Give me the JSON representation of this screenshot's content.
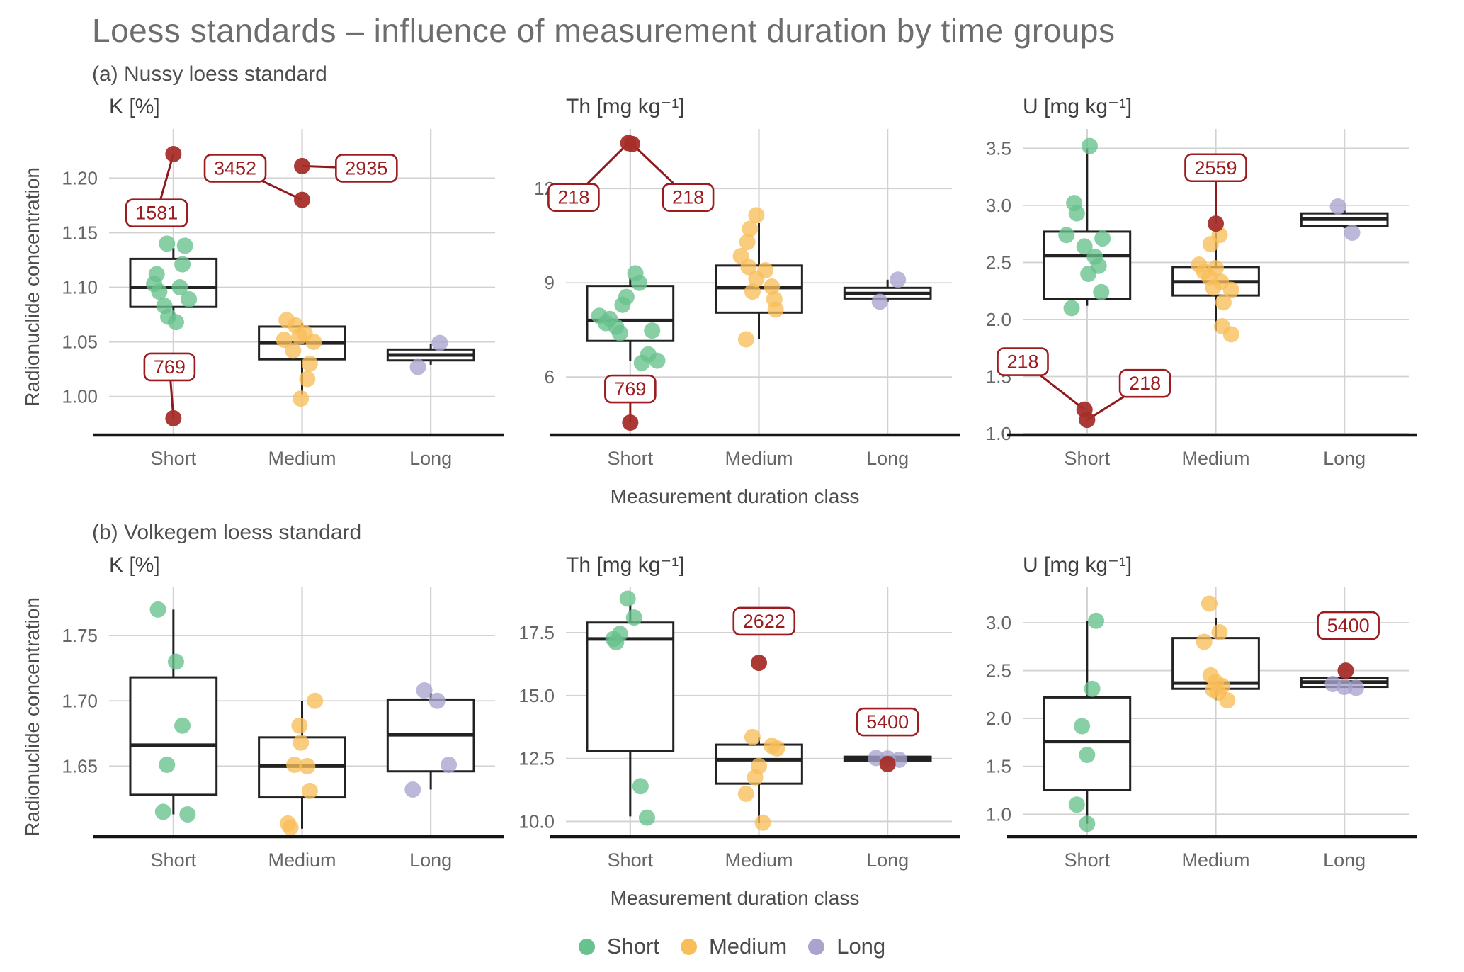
{
  "title": "Loess standards – influence of measurement duration by time groups",
  "ylab": "Radionuclide concentration",
  "xlab": "Measurement duration class",
  "categories": [
    "Short",
    "Medium",
    "Long"
  ],
  "colors": {
    "green": "#68c28d",
    "orange": "#f8be59",
    "purple": "#a8a4ce",
    "red": "#a62e2a",
    "red_label": "#9c1b1e",
    "red_line": "#8f191c",
    "box_stroke": "#222222",
    "grid": "#d2d2d2",
    "axis": "#151515"
  },
  "sections": [
    {
      "key": "a",
      "label": "(a) Nussy loess standard"
    },
    {
      "key": "b",
      "label": "(b) Volkegem loess standard"
    }
  ],
  "legend": [
    {
      "label": "Short",
      "color": "green"
    },
    {
      "label": "Medium",
      "color": "orange"
    },
    {
      "label": "Long",
      "color": "purple"
    }
  ],
  "chart_data": [
    {
      "type": "boxplot-jitter",
      "name": "nussy-k",
      "section": "a",
      "title": "K [%]",
      "ylim": [
        0.966,
        1.245
      ],
      "yticks": [
        1.0,
        1.05,
        1.1,
        1.15,
        1.2
      ],
      "ytick_labels": [
        "1.00",
        "1.05",
        "1.10",
        "1.15",
        "1.20"
      ],
      "groups": [
        {
          "cat": "Short",
          "color": "green",
          "box": {
            "q1": 1.082,
            "med": 1.1,
            "q3": 1.126,
            "wl": 1.07,
            "wh": 1.136
          },
          "points": [
            [
              -0.05,
              1.14
            ],
            [
              0.09,
              1.138
            ],
            [
              0.07,
              1.121
            ],
            [
              -0.13,
              1.112
            ],
            [
              -0.15,
              1.103
            ],
            [
              0.05,
              1.1
            ],
            [
              -0.11,
              1.096
            ],
            [
              0.12,
              1.089
            ],
            [
              -0.07,
              1.083
            ],
            [
              -0.04,
              1.073
            ],
            [
              0.02,
              1.068
            ]
          ],
          "outliers": [
            {
              "dx": 0,
              "y": 1.222,
              "label": "1581",
              "lx": -0.13,
              "ly": 1.168,
              "line": true
            },
            {
              "dx": 0,
              "y": 0.98,
              "label": "769",
              "lx": -0.03,
              "ly": 1.027,
              "line": true
            }
          ]
        },
        {
          "cat": "Medium",
          "color": "orange",
          "box": {
            "q1": 1.034,
            "med": 1.049,
            "q3": 1.064,
            "wl": 1.002,
            "wh": 1.067
          },
          "points": [
            [
              -0.12,
              1.07
            ],
            [
              -0.05,
              1.065
            ],
            [
              0.02,
              1.058
            ],
            [
              -0.02,
              1.055
            ],
            [
              -0.14,
              1.052
            ],
            [
              0.09,
              1.05
            ],
            [
              -0.07,
              1.042
            ],
            [
              0.06,
              1.03
            ],
            [
              0.04,
              1.016
            ],
            [
              -0.01,
              0.998
            ]
          ],
          "outliers": [
            {
              "dx": 0,
              "y": 1.211,
              "label": "2935",
              "lx": 0.5,
              "ly": 1.209,
              "line": true
            },
            {
              "dx": 0,
              "y": 1.18,
              "label": "3452",
              "lx": -0.52,
              "ly": 1.209,
              "line": true
            }
          ]
        },
        {
          "cat": "Long",
          "color": "purple",
          "box": {
            "q1": 1.033,
            "med": 1.038,
            "q3": 1.043,
            "wl": 1.029,
            "wh": 1.048
          },
          "points": [
            [
              0.07,
              1.049
            ],
            [
              -0.1,
              1.027
            ]
          ],
          "outliers": []
        }
      ]
    },
    {
      "type": "boxplot-jitter",
      "name": "nussy-th",
      "section": "a",
      "title": "Th [mg kg⁻¹]",
      "ylim": [
        4.2,
        13.9
      ],
      "yticks": [
        6,
        9,
        12
      ],
      "ytick_labels": [
        "6",
        "9",
        "12"
      ],
      "groups": [
        {
          "cat": "Short",
          "color": "green",
          "box": {
            "q1": 7.15,
            "med": 7.8,
            "q3": 8.9,
            "wl": 6.5,
            "wh": 9.15
          },
          "points": [
            [
              0.04,
              9.3
            ],
            [
              0.07,
              9.0
            ],
            [
              -0.03,
              8.55
            ],
            [
              -0.06,
              8.3
            ],
            [
              -0.24,
              7.95
            ],
            [
              -0.16,
              7.85
            ],
            [
              -0.19,
              7.72
            ],
            [
              -0.11,
              7.6
            ],
            [
              0.17,
              7.48
            ],
            [
              -0.08,
              7.4
            ],
            [
              0.14,
              6.72
            ],
            [
              0.21,
              6.52
            ],
            [
              0.09,
              6.45
            ]
          ],
          "outliers": [
            {
              "dx": -0.015,
              "y": 13.45,
              "label": "218",
              "lx": -0.44,
              "ly": 11.72,
              "line": true
            },
            {
              "dx": 0.015,
              "y": 13.42,
              "label": "218",
              "lx": 0.45,
              "ly": 11.72,
              "line": true
            },
            {
              "dx": 0,
              "y": 4.55,
              "label": "769",
              "lx": 0.0,
              "ly": 5.62,
              "line": true
            }
          ]
        },
        {
          "cat": "Medium",
          "color": "orange",
          "box": {
            "q1": 8.05,
            "med": 8.85,
            "q3": 9.55,
            "wl": 7.2,
            "wh": 10.9
          },
          "points": [
            [
              -0.02,
              11.15
            ],
            [
              -0.07,
              10.72
            ],
            [
              -0.09,
              10.3
            ],
            [
              -0.14,
              9.85
            ],
            [
              -0.08,
              9.5
            ],
            [
              0.05,
              9.4
            ],
            [
              -0.02,
              9.12
            ],
            [
              0.1,
              8.88
            ],
            [
              -0.05,
              8.72
            ],
            [
              0.12,
              8.48
            ],
            [
              0.13,
              8.15
            ],
            [
              -0.1,
              7.2
            ]
          ],
          "outliers": []
        },
        {
          "cat": "Long",
          "color": "purple",
          "box": {
            "q1": 8.5,
            "med": 8.66,
            "q3": 8.84,
            "wl": 8.4,
            "wh": 9.1
          },
          "points": [
            [
              0.08,
              9.1
            ],
            [
              -0.06,
              8.4
            ]
          ],
          "outliers": []
        }
      ]
    },
    {
      "type": "boxplot-jitter",
      "name": "nussy-u",
      "section": "a",
      "title": "U [mg kg⁻¹]",
      "ylim": [
        1.0,
        3.67
      ],
      "yticks": [
        1.0,
        1.5,
        2.0,
        2.5,
        3.0,
        3.5
      ],
      "ytick_labels": [
        "1.0",
        "1.5",
        "2.0",
        "2.5",
        "3.0",
        "3.5"
      ],
      "groups": [
        {
          "cat": "Short",
          "color": "green",
          "box": {
            "q1": 2.18,
            "med": 2.56,
            "q3": 2.77,
            "wl": 2.12,
            "wh": 3.5
          },
          "points": [
            [
              0.02,
              3.52
            ],
            [
              -0.1,
              3.02
            ],
            [
              -0.08,
              2.93
            ],
            [
              -0.16,
              2.74
            ],
            [
              0.12,
              2.71
            ],
            [
              -0.02,
              2.64
            ],
            [
              0.06,
              2.55
            ],
            [
              0.09,
              2.47
            ],
            [
              0.01,
              2.4
            ],
            [
              0.11,
              2.24
            ],
            [
              -0.12,
              2.1
            ]
          ],
          "outliers": [
            {
              "dx": -0.02,
              "y": 1.21,
              "label": "218",
              "lx": -0.5,
              "ly": 1.63,
              "line": true
            },
            {
              "dx": 0.0,
              "y": 1.12,
              "label": "218",
              "lx": 0.45,
              "ly": 1.44,
              "line": true
            }
          ]
        },
        {
          "cat": "Medium",
          "color": "orange",
          "box": {
            "q1": 2.21,
            "med": 2.33,
            "q3": 2.46,
            "wl": 1.9,
            "wh": 2.76
          },
          "points": [
            [
              0.03,
              2.74
            ],
            [
              -0.04,
              2.66
            ],
            [
              -0.13,
              2.48
            ],
            [
              0.0,
              2.45
            ],
            [
              -0.09,
              2.42
            ],
            [
              -0.05,
              2.37
            ],
            [
              0.04,
              2.33
            ],
            [
              -0.02,
              2.28
            ],
            [
              0.12,
              2.26
            ],
            [
              0.06,
              2.15
            ],
            [
              0.05,
              1.94
            ],
            [
              0.12,
              1.87
            ]
          ],
          "outliers": [
            {
              "dx": 0,
              "y": 2.84,
              "label": "2559",
              "lx": 0.0,
              "ly": 3.33,
              "line": true
            }
          ]
        },
        {
          "cat": "Long",
          "color": "purple",
          "box": {
            "q1": 2.82,
            "med": 2.88,
            "q3": 2.93,
            "wl": 2.8,
            "wh": 2.96
          },
          "points": [
            [
              -0.05,
              2.99
            ],
            [
              0.06,
              2.76
            ]
          ],
          "outliers": []
        }
      ]
    },
    {
      "type": "boxplot-jitter",
      "name": "volkegem-k",
      "section": "b",
      "title": "K [%]",
      "ylim": [
        1.597,
        1.787
      ],
      "yticks": [
        1.65,
        1.7,
        1.75
      ],
      "ytick_labels": [
        "1.65",
        "1.70",
        "1.75"
      ],
      "groups": [
        {
          "cat": "Short",
          "color": "green",
          "box": {
            "q1": 1.628,
            "med": 1.666,
            "q3": 1.718,
            "wl": 1.613,
            "wh": 1.77
          },
          "points": [
            [
              -0.12,
              1.77
            ],
            [
              0.02,
              1.73
            ],
            [
              0.07,
              1.681
            ],
            [
              -0.05,
              1.651
            ],
            [
              -0.08,
              1.615
            ],
            [
              0.11,
              1.613
            ]
          ],
          "outliers": []
        },
        {
          "cat": "Medium",
          "color": "orange",
          "box": {
            "q1": 1.626,
            "med": 1.65,
            "q3": 1.672,
            "wl": 1.602,
            "wh": 1.7
          },
          "points": [
            [
              0.1,
              1.7
            ],
            [
              -0.02,
              1.681
            ],
            [
              -0.01,
              1.668
            ],
            [
              -0.06,
              1.651
            ],
            [
              0.04,
              1.65
            ],
            [
              0.06,
              1.631
            ],
            [
              -0.11,
              1.606
            ],
            [
              -0.09,
              1.603
            ]
          ],
          "outliers": []
        },
        {
          "cat": "Long",
          "color": "purple",
          "box": {
            "q1": 1.646,
            "med": 1.674,
            "q3": 1.701,
            "wl": 1.632,
            "wh": 1.706
          },
          "points": [
            [
              -0.05,
              1.708
            ],
            [
              0.05,
              1.7
            ],
            [
              0.14,
              1.651
            ],
            [
              -0.14,
              1.632
            ]
          ],
          "outliers": []
        }
      ]
    },
    {
      "type": "boxplot-jitter",
      "name": "volkegem-th",
      "section": "b",
      "title": "Th [mg kg⁻¹]",
      "ylim": [
        9.45,
        19.3
      ],
      "yticks": [
        10.0,
        12.5,
        15.0,
        17.5
      ],
      "ytick_labels": [
        "10.0",
        "12.5",
        "15.0",
        "17.5"
      ],
      "groups": [
        {
          "cat": "Short",
          "color": "green",
          "box": {
            "q1": 12.8,
            "med": 17.25,
            "q3": 17.9,
            "wl": 10.2,
            "wh": 18.6
          },
          "points": [
            [
              -0.02,
              18.85
            ],
            [
              0.03,
              18.1
            ],
            [
              -0.08,
              17.45
            ],
            [
              -0.13,
              17.25
            ],
            [
              -0.11,
              17.12
            ],
            [
              0.08,
              11.4
            ],
            [
              0.13,
              10.15
            ]
          ],
          "outliers": []
        },
        {
          "cat": "Medium",
          "color": "orange",
          "box": {
            "q1": 11.5,
            "med": 12.45,
            "q3": 13.05,
            "wl": 9.95,
            "wh": 13.35
          },
          "points": [
            [
              -0.05,
              13.35
            ],
            [
              0.1,
              13.0
            ],
            [
              0.14,
              12.9
            ],
            [
              0.0,
              12.2
            ],
            [
              -0.03,
              11.75
            ],
            [
              -0.1,
              11.1
            ],
            [
              0.03,
              9.95
            ]
          ],
          "outliers": [
            {
              "dx": 0,
              "y": 16.3,
              "label": "2622",
              "lx": 0.04,
              "ly": 17.95,
              "line": false
            }
          ]
        },
        {
          "cat": "Long",
          "color": "purple",
          "box": {
            "q1": 12.42,
            "med": 12.5,
            "q3": 12.57,
            "wl": 12.42,
            "wh": 12.57
          },
          "points": [
            [
              -0.09,
              12.52
            ],
            [
              0.0,
              12.5
            ],
            [
              0.09,
              12.45
            ]
          ],
          "outliers": [
            {
              "dx": 0.0,
              "y": 12.28,
              "label": "5400",
              "lx": 0.0,
              "ly": 13.95,
              "line": false
            }
          ]
        }
      ]
    },
    {
      "type": "boxplot-jitter",
      "name": "volkegem-u",
      "section": "b",
      "title": "U [mg kg⁻¹]",
      "ylim": [
        0.78,
        3.37
      ],
      "yticks": [
        1.0,
        1.5,
        2.0,
        2.5,
        3.0
      ],
      "ytick_labels": [
        "1.0",
        "1.5",
        "2.0",
        "2.5",
        "3.0"
      ],
      "groups": [
        {
          "cat": "Short",
          "color": "green",
          "box": {
            "q1": 1.25,
            "med": 1.76,
            "q3": 2.22,
            "wl": 0.9,
            "wh": 3.02
          },
          "points": [
            [
              0.07,
              3.02
            ],
            [
              0.04,
              2.31
            ],
            [
              -0.04,
              1.92
            ],
            [
              0.0,
              1.62
            ],
            [
              -0.08,
              1.1
            ],
            [
              0.0,
              0.9
            ]
          ],
          "outliers": []
        },
        {
          "cat": "Medium",
          "color": "orange",
          "box": {
            "q1": 2.31,
            "med": 2.37,
            "q3": 2.84,
            "wl": 2.19,
            "wh": 3.05
          },
          "points": [
            [
              -0.05,
              3.2
            ],
            [
              0.03,
              2.9
            ],
            [
              -0.09,
              2.8
            ],
            [
              -0.04,
              2.45
            ],
            [
              0.0,
              2.38
            ],
            [
              0.05,
              2.34
            ],
            [
              -0.02,
              2.3
            ],
            [
              0.02,
              2.27
            ],
            [
              0.09,
              2.19
            ]
          ],
          "outliers": []
        },
        {
          "cat": "Long",
          "color": "purple",
          "box": {
            "q1": 2.33,
            "med": 2.38,
            "q3": 2.42,
            "wl": 2.33,
            "wh": 2.42
          },
          "points": [
            [
              -0.09,
              2.36
            ],
            [
              0.0,
              2.33
            ],
            [
              0.09,
              2.32
            ]
          ],
          "outliers": [
            {
              "dx": 0.01,
              "y": 2.5,
              "label": "5400",
              "lx": 0.03,
              "ly": 2.97,
              "line": false
            }
          ]
        }
      ]
    }
  ]
}
